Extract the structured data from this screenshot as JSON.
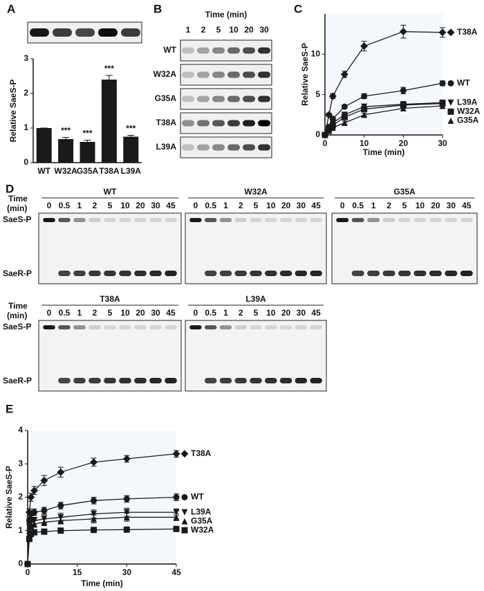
{
  "panel_labels": [
    "A",
    "B",
    "C",
    "D",
    "E"
  ],
  "chart_data": [
    {
      "type": "bar",
      "ylabel": "Relative SaeS-P",
      "categories": [
        "WT",
        "W32A",
        "G35A",
        "T38A",
        "L39A"
      ],
      "values": [
        1,
        0.68,
        0.6,
        2.4,
        0.75
      ],
      "errors": [
        0,
        0.05,
        0.05,
        0.12,
        0.04
      ],
      "color": "#1a1a1a",
      "ylim": [
        0,
        3
      ],
      "yticks": [
        0,
        1,
        2,
        3
      ],
      "annotations": [
        {
          "x": "W32A",
          "text": "***"
        },
        {
          "x": "G35A",
          "text": "***"
        },
        {
          "x": "T38A",
          "text": "***"
        },
        {
          "x": "L39A",
          "text": "***"
        }
      ]
    },
    {
      "type": "line",
      "xlabel": "Time (min)",
      "ylabel": "Relative SaeS-P",
      "x": [
        0,
        1,
        2,
        5,
        10,
        20,
        30
      ],
      "xlim": [
        0,
        30
      ],
      "xticks": [
        0,
        10,
        20,
        30
      ],
      "ylim": [
        0,
        15
      ],
      "yticks": [
        0,
        5,
        10
      ],
      "color": "#1a1a1a",
      "series": [
        {
          "name": "T38A",
          "marker": "diamond",
          "values": [
            0,
            2.5,
            4.8,
            7.5,
            11,
            12.8,
            12.7
          ],
          "errors": [
            0,
            0.2,
            0.3,
            0.4,
            0.6,
            0.8,
            0.6
          ]
        },
        {
          "name": "WT",
          "marker": "circle",
          "values": [
            0,
            1,
            2,
            3.5,
            4.8,
            5.5,
            6.4
          ],
          "errors": [
            0,
            0.1,
            0.2,
            0.2,
            0.3,
            0.4,
            0.3
          ]
        },
        {
          "name": "L39A",
          "marker": "triangle-down",
          "values": [
            0,
            0.8,
            1.5,
            2.5,
            3.5,
            3.8,
            4
          ],
          "errors": [
            0,
            0.1,
            0.1,
            0.2,
            0.3,
            0.3,
            0.3
          ]
        },
        {
          "name": "W32A",
          "marker": "square",
          "values": [
            0,
            0.7,
            1.2,
            2.2,
            3.2,
            3.7,
            3.9
          ],
          "errors": [
            0,
            0.1,
            0.1,
            0.2,
            0.2,
            0.3,
            0.3
          ]
        },
        {
          "name": "G35A",
          "marker": "triangle",
          "values": [
            0,
            0.5,
            0.9,
            1.5,
            2.5,
            3.3,
            3.6
          ],
          "errors": [
            0,
            0.1,
            0.1,
            0.2,
            0.2,
            0.3,
            0.3
          ]
        }
      ]
    },
    {
      "type": "line",
      "xlabel": "Time (min)",
      "ylabel": "Relative SaeS-P",
      "x": [
        0,
        0.5,
        1,
        2,
        5,
        10,
        20,
        30,
        45
      ],
      "xlim": [
        0,
        45
      ],
      "xticks": [
        0,
        15,
        30,
        45
      ],
      "ylim": [
        0,
        4
      ],
      "yticks": [
        0,
        1,
        2,
        3,
        4
      ],
      "color": "#1a1a1a",
      "series": [
        {
          "name": "T38A",
          "marker": "diamond",
          "values": [
            0,
            1.55,
            2.0,
            2.2,
            2.5,
            2.75,
            3.05,
            3.15,
            3.3
          ],
          "errors": [
            0,
            0.1,
            0.12,
            0.12,
            0.15,
            0.15,
            0.12,
            0.1,
            0.1
          ]
        },
        {
          "name": "WT",
          "marker": "circle",
          "values": [
            0,
            1.3,
            1.5,
            1.55,
            1.6,
            1.75,
            1.9,
            1.95,
            2.0
          ],
          "errors": [
            0,
            0.08,
            0.1,
            0.1,
            0.1,
            0.1,
            0.1,
            0.1,
            0.1
          ]
        },
        {
          "name": "L39A",
          "marker": "triangle-down",
          "values": [
            0,
            1.1,
            1.25,
            1.3,
            1.35,
            1.4,
            1.5,
            1.55,
            1.55
          ],
          "errors": [
            0,
            0.08,
            0.1,
            0.1,
            0.12,
            0.12,
            0.12,
            0.12,
            0.1
          ]
        },
        {
          "name": "G35A",
          "marker": "triangle",
          "values": [
            0,
            1.0,
            1.15,
            1.2,
            1.25,
            1.3,
            1.35,
            1.4,
            1.4
          ],
          "errors": [
            0,
            0.08,
            0.1,
            0.1,
            0.1,
            0.1,
            0.12,
            0.12,
            0.1
          ]
        },
        {
          "name": "W32A",
          "marker": "square",
          "values": [
            0,
            0.75,
            0.9,
            0.95,
            0.97,
            1.0,
            1.02,
            1.03,
            1.05
          ],
          "errors": [
            0,
            0.05,
            0.06,
            0.06,
            0.06,
            0.06,
            0.06,
            0.06,
            0.06
          ]
        }
      ]
    }
  ],
  "gel_b": {
    "title": "Time (min)",
    "times": [
      "1",
      "2",
      "5",
      "10",
      "20",
      "30"
    ],
    "rows": [
      "WT",
      "W32A",
      "G35A",
      "T38A",
      "L39A"
    ]
  },
  "gels_d": {
    "time_label": [
      "Time",
      "(min)"
    ],
    "band_labels": [
      "SaeS-P",
      "SaeR-P"
    ],
    "times": [
      "0",
      "0.5",
      "1",
      "2",
      "5",
      "10",
      "20",
      "30",
      "45"
    ],
    "panels": [
      "WT",
      "W32A",
      "G35A",
      "T38A",
      "L39A"
    ]
  }
}
